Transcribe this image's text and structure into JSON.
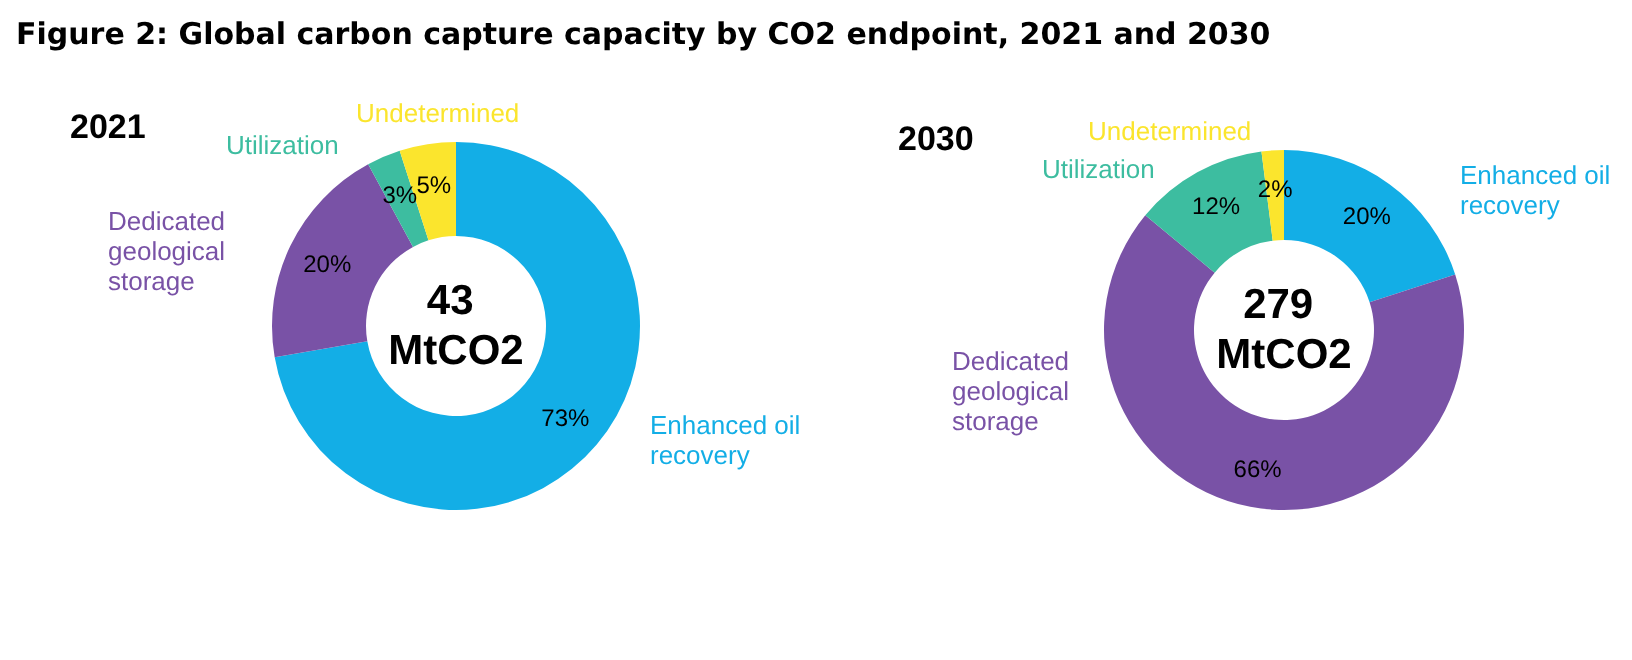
{
  "chart_data": [
    {
      "type": "donut",
      "title": "Figure 2: Global carbon capture capacity by CO2 endpoint, 2021 and 2030",
      "subtitle": "2021",
      "categories": [
        "Enhanced oil recovery",
        "Dedicated geological storage",
        "Utilization",
        "Undetermined"
      ],
      "values": [
        73,
        20,
        3,
        5
      ],
      "value_labels": [
        "73%",
        "20%",
        "3%",
        "5%"
      ],
      "colors": [
        "#13aee6",
        "#7952a6",
        "#3dbda0",
        "#fbe52d"
      ],
      "annotations": [
        "43 MtCO2"
      ]
    },
    {
      "type": "donut",
      "title": "2030",
      "categories": [
        "Enhanced oil recovery",
        "Dedicated geological storage",
        "Utilization",
        "Undetermined"
      ],
      "values": [
        20,
        66,
        12,
        2
      ],
      "value_labels": [
        "20%",
        "66%",
        "12%",
        "2%"
      ],
      "colors": [
        "#13aee6",
        "#7952a6",
        "#3dbda0",
        "#fbe52d"
      ],
      "annotations": [
        "279 MtCO2"
      ]
    }
  ]
}
